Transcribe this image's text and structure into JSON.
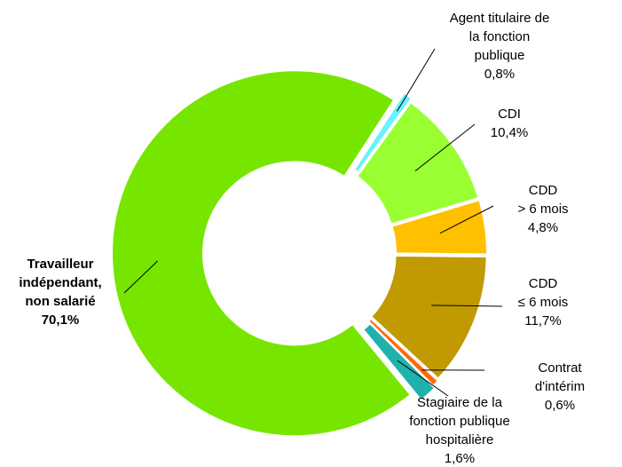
{
  "chart_data": {
    "type": "donut",
    "categories": [
      "Agent titulaire de\nla fonction\npublique",
      "CDI",
      "CDD\n> 6 mois",
      "CDD\n≤ 6 mois",
      "Contrat d'intérim",
      "Stagiaire de la\nfonction publique\nhospitalière",
      "Travailleur\nindépendant,\nnon salarié"
    ],
    "values": [
      0.8,
      10.4,
      4.8,
      11.7,
      0.6,
      1.6,
      70.1
    ],
    "value_labels": [
      "0,8%",
      "10,4%",
      "4,8%",
      "11,7%",
      "0,6%",
      "1,6%",
      "70,1%"
    ],
    "colors": [
      "#66f2ff",
      "#99ff33",
      "#ffc000",
      "#c09a00",
      "#ff6a00",
      "#1fb2ac",
      "#76e600"
    ]
  }
}
